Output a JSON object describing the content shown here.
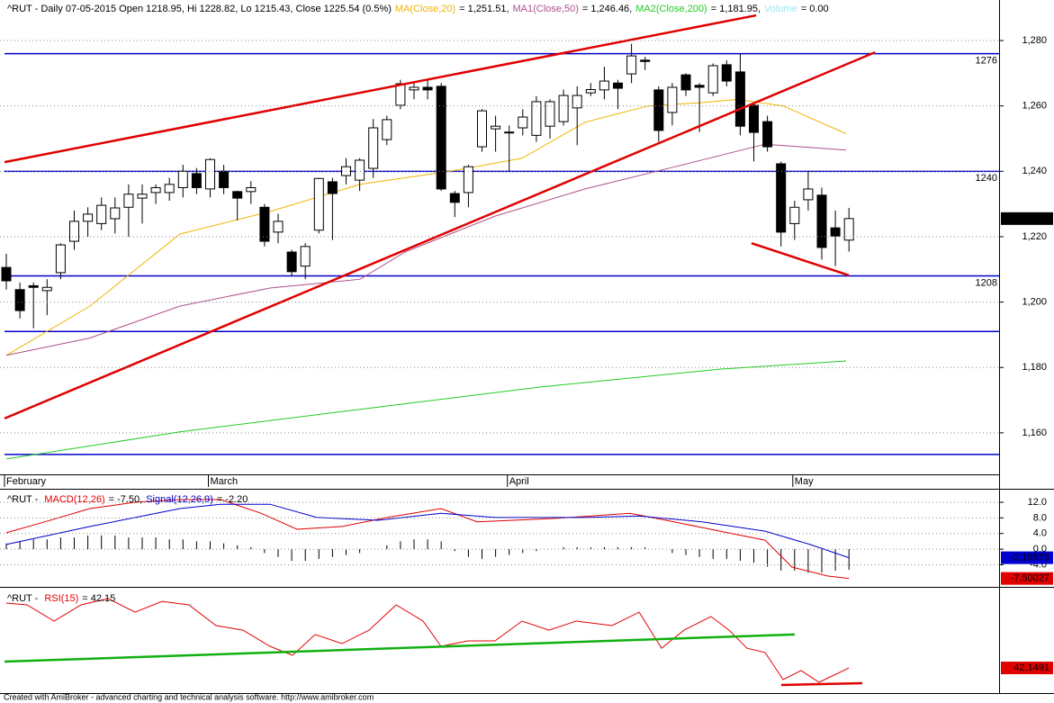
{
  "chart_data": [
    {
      "type": "candlestick",
      "title": "^RUT - Daily 07-05-2015 Open 1218.95, Hi 1228.82, Lo 1215.43, Close 1225.54 (0.5%)",
      "categories": [
        "February",
        null,
        null,
        null,
        null,
        null,
        null,
        null,
        null,
        null,
        null,
        null,
        null,
        null,
        null,
        "March",
        null,
        null,
        null,
        null,
        null,
        null,
        null,
        null,
        null,
        null,
        null,
        null,
        null,
        null,
        null,
        null,
        null,
        null,
        null,
        null,
        null,
        "April",
        null,
        null,
        null,
        null,
        null,
        null,
        null,
        null,
        null,
        null,
        null,
        null,
        null,
        null,
        null,
        null,
        null,
        null,
        null,
        null,
        "May",
        null,
        null,
        null,
        null
      ],
      "open": [
        1210.6,
        1203.8,
        1205,
        1203.5,
        1209,
        1218.6,
        1224.7,
        1224,
        1225.5,
        1229,
        1231.8,
        1233.5,
        1233.5,
        1235,
        1239.3,
        1234.6,
        1240,
        1233.8,
        1233.8,
        1229,
        1221.4,
        1215.3,
        1211,
        1222,
        1236.8,
        1238.7,
        1237.3,
        1240.9,
        1249.7,
        1260.2,
        1264.9,
        1265.7,
        1266,
        1233.2,
        1233.5,
        1247.5,
        1253,
        1252,
        1253.3,
        1251,
        1253.8,
        1255.2,
        1259.4,
        1264,
        1264.9,
        1267,
        1269.8,
        1274,
        1264.9,
        1258,
        1269.5,
        1266.3,
        1264,
        1272.6,
        1270.4,
        1260.2,
        1255.2,
        1242.3,
        1224,
        1231.3,
        1232.7,
        1222.7,
        1218.95
      ],
      "high": [
        1214.8,
        1206,
        1206,
        1207,
        1218,
        1228,
        1229,
        1232,
        1232,
        1236,
        1236,
        1236,
        1238,
        1242,
        1241,
        1244,
        1242,
        1234,
        1237,
        1230,
        1227,
        1216,
        1218,
        1238,
        1238,
        1244,
        1244,
        1256,
        1257,
        1268,
        1267,
        1268,
        1267,
        1234,
        1242,
        1259,
        1257,
        1254,
        1259,
        1263,
        1262,
        1265,
        1266,
        1267,
        1272,
        1268,
        1279,
        1275,
        1266,
        1267,
        1270,
        1267,
        1273,
        1274,
        1276,
        1261,
        1257,
        1243,
        1231,
        1240,
        1235,
        1228,
        1228.82
      ],
      "low": [
        1203.8,
        1195,
        1192,
        1196,
        1207,
        1216,
        1220,
        1222,
        1221,
        1220,
        1224,
        1230,
        1231,
        1232,
        1233,
        1232,
        1233,
        1225,
        1230,
        1217,
        1218,
        1208,
        1207,
        1221,
        1219,
        1236,
        1234,
        1238,
        1248,
        1259,
        1262,
        1262,
        1234,
        1226,
        1229,
        1246,
        1246,
        1240,
        1251,
        1249,
        1250,
        1254,
        1248,
        1263,
        1262,
        1259,
        1267,
        1271,
        1249,
        1254,
        1263,
        1252,
        1263,
        1266,
        1251,
        1243,
        1246,
        1217,
        1219,
        1228,
        1213,
        1211,
        1215.43
      ],
      "close": [
        1206.5,
        1197.4,
        1204.5,
        1204.5,
        1217.5,
        1224.7,
        1226.9,
        1229.6,
        1228.8,
        1233,
        1233,
        1235,
        1236,
        1240,
        1235,
        1243.6,
        1235,
        1231.8,
        1235,
        1218.6,
        1224.7,
        1209.3,
        1217,
        1237.8,
        1233.2,
        1241.4,
        1243.4,
        1253.3,
        1255.8,
        1266.8,
        1265.7,
        1264.9,
        1234.6,
        1230.5,
        1241.4,
        1258.5,
        1253.8,
        1252,
        1256.6,
        1261.3,
        1261.3,
        1263.2,
        1263.2,
        1265,
        1267.6,
        1265.4,
        1275.3,
        1273.6,
        1252.5,
        1265.7,
        1264.9,
        1265.7,
        1272.3,
        1267.6,
        1253.8,
        1251.9,
        1247.5,
        1221.4,
        1229,
        1234.6,
        1216.7,
        1220.2,
        1225.54
      ],
      "up_color": "#ffffff",
      "down_color": "#000000",
      "ylim": [
        1147.3,
        1292.4
      ],
      "yticks": [
        {
          "value": 1160,
          "label": "1,160"
        },
        {
          "value": 1180,
          "label": "1,180"
        },
        {
          "value": 1200,
          "label": "1,200"
        },
        {
          "value": 1220,
          "label": "1,220"
        },
        {
          "value": 1240,
          "label": "1,240"
        },
        {
          "value": 1260,
          "label": "1,260"
        },
        {
          "value": 1280,
          "label": "1,280"
        }
      ],
      "grid": true,
      "last_value": 1225.54,
      "last_value_label": "1,225.54",
      "overlays": [
        {
          "name": "MA(Close,20)",
          "value_text": "= 1,251.51,",
          "color": "#f0b400",
          "x": [
            0,
            6.16,
            12.78,
            19.4,
            26.03,
            32.65,
            37.95,
            42.58,
            47.22,
            51.19,
            53.84,
            57.15,
            61.79
          ],
          "values": [
            1183.7,
            1198.8,
            1220.8,
            1227.7,
            1236,
            1240,
            1244,
            1255,
            1260,
            1261,
            1262,
            1260,
            1251.5
          ]
        },
        {
          "name": "MA1(Close,50)",
          "value_text": "= 1,246.46,",
          "color": "#b0508a",
          "x": [
            0,
            6.16,
            12.78,
            19.4,
            26.03,
            29.34,
            35.96,
            42.58,
            49.21,
            55.83,
            61.79
          ],
          "values": [
            1183.7,
            1189,
            1198.8,
            1204.3,
            1207,
            1215.3,
            1226.3,
            1234.6,
            1241.4,
            1248.3,
            1246.5
          ]
        },
        {
          "name": "MA2(Close,200)",
          "value_text": "= 1,181.95,",
          "color": "#22cc22",
          "x": [
            0,
            12.78,
            26.03,
            39.27,
            52.52,
            61.79
          ],
          "values": [
            1152,
            1160.3,
            1167.2,
            1174,
            1179.5,
            1182
          ]
        }
      ],
      "legend_extra": [
        {
          "name": "Volume",
          "value_text": "= 0.00",
          "color": "#9ee6f0"
        }
      ],
      "levels": [
        1276,
        1240,
        1208
      ],
      "level_color": "#0000cc",
      "unlabeled_levels": [
        1191,
        1153.4
      ],
      "trendlines": [
        {
          "x": [
            -0.13,
            55.17
          ],
          "values": [
            1242.8,
            1287.7
          ],
          "color": "#e00000"
        },
        {
          "x": [
            -0.13,
            63.91
          ],
          "values": [
            1164.4,
            1276.4
          ],
          "color": "#e00000"
        },
        {
          "x": [
            54.83,
            61.99
          ],
          "values": [
            1218,
            1208.2
          ],
          "color": "#e00000"
        }
      ]
    },
    {
      "type": "line",
      "prefix": "^RUT - ",
      "ylim": [
        -9.2,
        15
      ],
      "yticks": [
        {
          "value": 12,
          "label": "12.0"
        },
        {
          "value": 8,
          "label": "8.0"
        },
        {
          "value": 4,
          "label": "4.0"
        },
        {
          "value": 0,
          "label": "0.0"
        },
        {
          "value": -4,
          "label": "-4.0"
        }
      ],
      "grid": true,
      "series": [
        {
          "name": "MACD(12,26)",
          "value_text": "= -7.50,",
          "color": "#e00000",
          "last_value": -7.50027,
          "x": [
            0,
            2.85,
            6.16,
            9.47,
            12.78,
            15.76,
            18.74,
            21.39,
            24.7,
            28.01,
            31.99,
            34.64,
            37.28,
            40.6,
            45.89,
            48.54,
            52.52,
            55.83,
            57.81,
            60.46,
            62
          ],
          "values": [
            4.2,
            7,
            10.4,
            12,
            12.7,
            12.7,
            9.2,
            5.1,
            5.8,
            8.1,
            10.4,
            7,
            7.4,
            7.9,
            9.2,
            7.4,
            4.6,
            2.3,
            -4.6,
            -6.9,
            -7.5
          ]
        },
        {
          "name": "Signal(12,26,9)",
          "value_text": "= -2.20",
          "color": "#0000cc",
          "last_value": -2.19575,
          "x": [
            0,
            6.16,
            12.78,
            15.76,
            19.4,
            22.85,
            27.35,
            31.99,
            35.96,
            42.58,
            46.56,
            51.19,
            55.83,
            59.14,
            62
          ],
          "values": [
            1.2,
            5.8,
            10.4,
            11.5,
            11.5,
            8.1,
            7.4,
            9.2,
            8.1,
            8.1,
            8.5,
            7,
            4.6,
            1.2,
            -2.2
          ]
        }
      ],
      "histogram": [
        1.5,
        2,
        2.5,
        2.5,
        3,
        3,
        3.5,
        3.5,
        3.5,
        3,
        3,
        3,
        2.5,
        2.5,
        2,
        2,
        1.5,
        1,
        0.5,
        -1,
        -2,
        -3,
        -3,
        -2.5,
        -2,
        -1.5,
        -1,
        0,
        1,
        2,
        2.5,
        2.5,
        2,
        -0.5,
        -2,
        -2.5,
        -2,
        -1.5,
        -1,
        -0.5,
        0,
        0.5,
        0.5,
        0.5,
        0.5,
        0.5,
        0.5,
        0.5,
        0,
        -1,
        -1.5,
        -2,
        -2.5,
        -2.5,
        -3,
        -3.5,
        -4.5,
        -5.5,
        -5.5,
        -6,
        -6,
        -5.5,
        -5.3
      ],
      "histogram_color": "#000000"
    },
    {
      "type": "line",
      "prefix": "^RUT - ",
      "ylim": [
        30,
        80
      ],
      "grid": false,
      "series": [
        {
          "name": "RSI(15)",
          "value_text": "= 42.15",
          "color": "#e00000",
          "last_value": 42.1491,
          "x": [
            0,
            1.52,
            3.51,
            5.5,
            7.48,
            9.47,
            11.46,
            13.44,
            15.43,
            17.42,
            19.4,
            21.06,
            22.72,
            24.7,
            26.69,
            28.68,
            30.66,
            31.99,
            33.97,
            35.96,
            37.95,
            39.93,
            41.92,
            44.57,
            46.56,
            48.21,
            49.87,
            51.85,
            53.18,
            54.5,
            55.83,
            57.15,
            58.48,
            59.8,
            62
          ],
          "values": [
            73.5,
            72.6,
            64.8,
            72.6,
            75.7,
            69.1,
            74.3,
            72.6,
            62.6,
            60.4,
            52.6,
            48.2,
            58.3,
            53.9,
            60.4,
            72.6,
            64.8,
            52.6,
            55.2,
            55.2,
            64.8,
            60.4,
            64.8,
            62.6,
            69.1,
            51.7,
            60.4,
            67,
            60.4,
            51.7,
            49.6,
            36.5,
            40.9,
            35.2,
            42.15
          ]
        }
      ],
      "trendlines": [
        {
          "x": [
            -0.13,
            58.01
          ],
          "values": [
            45.2,
            58.3
          ],
          "color": "#10b010"
        },
        {
          "x": [
            57.02,
            62.98
          ],
          "values": [
            33.9,
            34.8
          ],
          "color": "#e00000"
        }
      ]
    }
  ],
  "footer": "Created with AmiBroker - advanced charting and technical analysis software. http://www.amibroker.com"
}
